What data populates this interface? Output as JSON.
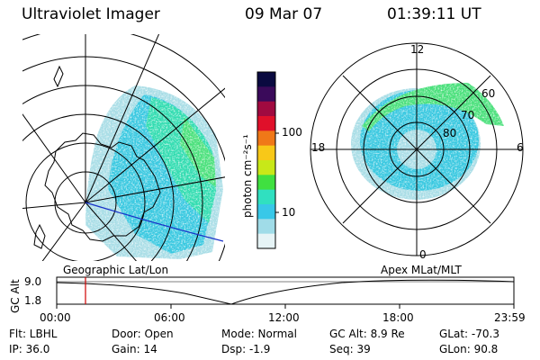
{
  "header": {
    "instrument": "Ultraviolet Imager",
    "date": "09 Mar 07",
    "time": "01:39:11 UT"
  },
  "colorbar": {
    "unit_label": "photon cm⁻²s⁻¹",
    "ticks": [
      "100",
      "10"
    ],
    "colors": [
      "#0a0a40",
      "#3a0a5a",
      "#a00a40",
      "#e0102a",
      "#f07818",
      "#f8c818",
      "#c8e818",
      "#40e040",
      "#30e0c0",
      "#38c8e8",
      "#a0dce8",
      "#e6f4f6"
    ]
  },
  "geo_map": {
    "title": "Geographic Lat/Lon"
  },
  "polar_map": {
    "title": "Apex MLat/MLT",
    "mlt_labels": {
      "top": "12",
      "left": "18",
      "right": "6",
      "bottom": "0"
    },
    "lat_labels": [
      "60",
      "70",
      "80"
    ]
  },
  "altitude_plot": {
    "ylabel": "GC Alt",
    "yticks": [
      "9.0",
      "1.8"
    ],
    "xticks": [
      "00:00",
      "06:00",
      "12:00",
      "18:00",
      "23:59"
    ],
    "marker_color": "#d00000"
  },
  "footer": {
    "filter": "Flt: LBHL",
    "ip": "IP: 36.0",
    "door": "Door: Open",
    "gain": "Gain: 14",
    "mode": "Mode: Normal",
    "dsp": "Dsp:    -1.9",
    "gc_alt": "GC Alt: 8.9 Re",
    "seq": "Seq: 39",
    "glat": "GLat: -70.3",
    "glon": "GLon:  90.8"
  }
}
